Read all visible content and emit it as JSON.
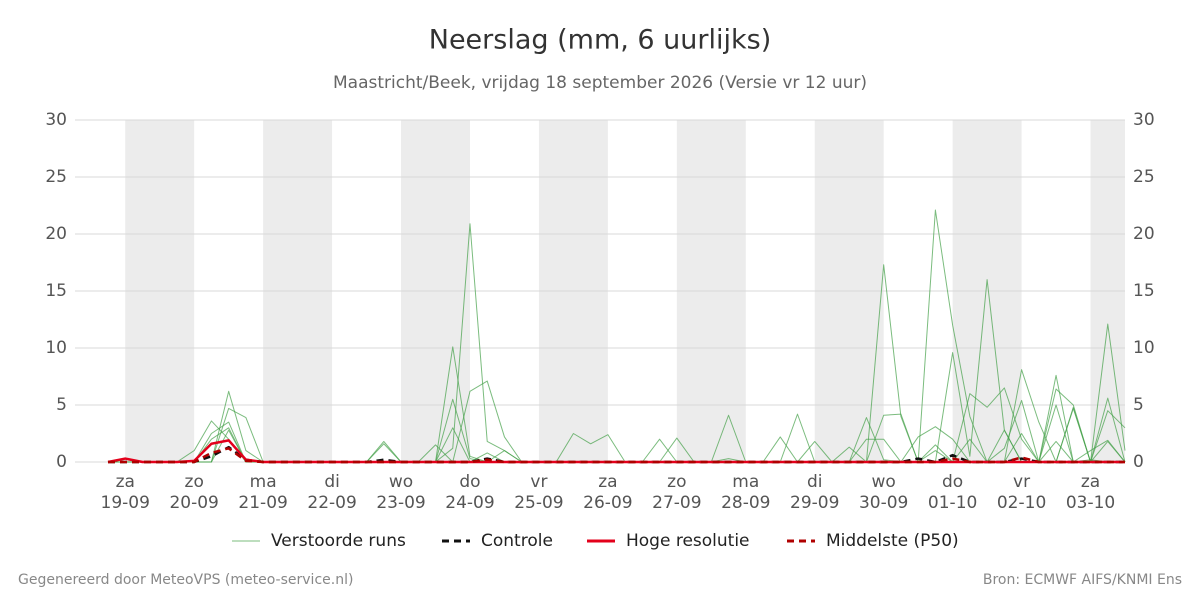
{
  "chart_data": {
    "type": "line",
    "title": "Neerslag (mm, 6 uurlijks)",
    "subtitle": "Maastricht/Beek, vrijdag 18 september 2026 (Versie vr 12 uur)",
    "footer_left": "Gegenereerd door MeteoVPS (meteo-service.nl)",
    "footer_right": "Bron: ECMWF AIFS/KNMI Ens",
    "categories": [
      null,
      "19-09",
      null,
      null,
      null,
      "20-09",
      null,
      null,
      null,
      "21-09",
      null,
      null,
      null,
      "22-09",
      null,
      null,
      null,
      "23-09",
      null,
      null,
      null,
      "24-09",
      null,
      null,
      null,
      "25-09",
      null,
      null,
      null,
      "26-09",
      null,
      null,
      null,
      "27-09",
      null,
      null,
      null,
      "28-09",
      null,
      null,
      null,
      "29-09",
      null,
      null,
      null,
      "30-09",
      null,
      null,
      null,
      "01-10",
      null,
      null,
      null,
      "02-10",
      null,
      null,
      null,
      "03-10",
      null,
      null
    ],
    "category_days": [
      null,
      "za",
      null,
      null,
      null,
      "zo",
      null,
      null,
      null,
      "ma",
      null,
      null,
      null,
      "di",
      null,
      null,
      null,
      "wo",
      null,
      null,
      null,
      "do",
      null,
      null,
      null,
      "vr",
      null,
      null,
      null,
      "za",
      null,
      null,
      null,
      "zo",
      null,
      null,
      null,
      "ma",
      null,
      null,
      null,
      "di",
      null,
      null,
      null,
      "wo",
      null,
      null,
      null,
      "do",
      null,
      null,
      null,
      "vr",
      null,
      null,
      null,
      "za",
      null,
      null
    ],
    "ylim": [
      0,
      30
    ],
    "yticks": [
      0,
      5,
      10,
      15,
      20,
      25,
      30
    ],
    "grid": true,
    "series": [
      {
        "name": "Verstoorde runs",
        "color": "#43a047",
        "values": [
          [
            0,
            0,
            0,
            0,
            0,
            0,
            2.0,
            3.0,
            0,
            0,
            0,
            0,
            0,
            0,
            0,
            0,
            0,
            0,
            0,
            0,
            1.2,
            20.9,
            1.8,
            1.0,
            0,
            0,
            0,
            0,
            0,
            0,
            0,
            0,
            0,
            0,
            0,
            0,
            0,
            0,
            0,
            0,
            0,
            0,
            0,
            0,
            0,
            17.3,
            4.0,
            0,
            1.5,
            0,
            2.0,
            0,
            2.8,
            0,
            0,
            5.0,
            0,
            0,
            1.8,
            0
          ],
          [
            0,
            0,
            0,
            0,
            0,
            0,
            0,
            6.2,
            1.0,
            0,
            0,
            0,
            0,
            0,
            0,
            0,
            0,
            0,
            0,
            0,
            10.1,
            0.5,
            0,
            0,
            0,
            0,
            0,
            0,
            0,
            0,
            0,
            0,
            0,
            0,
            0,
            0,
            4.1,
            0,
            0,
            0,
            0,
            0,
            0,
            0,
            3.9,
            0.2,
            0,
            0,
            22.1,
            12.0,
            4.0,
            0,
            0,
            2.5,
            0,
            0,
            4.8,
            0,
            12.1,
            1.0
          ],
          [
            0,
            0,
            0,
            0,
            0,
            0,
            0,
            4.7,
            3.9,
            0,
            0,
            0,
            0,
            0,
            0,
            0,
            0,
            0,
            0,
            0,
            0,
            6.2,
            7.1,
            2.2,
            0,
            0,
            0,
            2.5,
            1.6,
            2.4,
            0,
            0,
            0,
            0,
            0,
            0,
            0,
            0,
            0,
            0,
            0,
            0,
            0,
            0,
            0,
            0,
            0,
            0,
            0,
            9.6,
            0.5,
            16.0,
            2.8,
            0,
            0,
            7.6,
            0,
            0.2,
            0,
            0
          ],
          [
            0,
            0,
            0,
            0,
            0,
            1.0,
            3.6,
            2.0,
            0,
            0,
            0,
            0,
            0,
            0,
            0,
            0,
            1.8,
            0,
            0,
            0,
            5.5,
            0.3,
            0,
            0,
            0,
            0,
            0,
            0,
            0,
            0,
            0,
            0,
            2.0,
            0,
            0,
            0,
            0,
            0,
            0,
            0,
            4.2,
            0,
            0,
            0,
            0,
            4.1,
            4.2,
            0,
            0,
            0,
            6.0,
            4.8,
            6.5,
            2.0,
            0,
            6.4,
            5.0,
            0,
            4.5,
            3.0
          ],
          [
            0,
            0,
            0,
            0,
            0,
            0,
            2.5,
            3.5,
            0,
            0,
            0,
            0,
            0,
            0,
            0,
            0,
            1.6,
            0,
            0,
            0,
            3.0,
            0,
            0,
            1.0,
            0,
            0,
            0,
            0,
            0,
            0,
            0,
            0,
            0,
            0,
            0,
            0,
            0,
            0,
            0,
            2.2,
            0,
            1.8,
            0,
            0,
            2.0,
            2.0,
            0,
            2.2,
            3.1,
            2.0,
            0,
            0,
            0,
            8.1,
            3.5,
            0,
            4.7,
            0,
            5.6,
            0
          ],
          [
            0,
            0,
            0,
            0,
            0,
            0,
            0,
            2.8,
            0,
            0,
            0,
            0,
            0,
            0,
            0,
            0,
            0,
            0,
            0,
            1.5,
            0,
            0,
            0.8,
            0,
            0,
            0,
            0,
            0,
            0,
            0,
            0,
            0,
            0,
            2.1,
            0,
            0,
            0.3,
            0,
            0,
            0,
            0,
            0,
            0,
            1.3,
            0,
            0,
            0,
            0,
            1.0,
            0,
            0,
            0,
            1.2,
            5.4,
            0,
            1.8,
            0,
            1.0,
            1.9,
            0
          ]
        ]
      },
      {
        "name": "Controle",
        "color": "#111111",
        "dashed": true,
        "values": [
          0,
          0,
          0,
          0,
          0,
          0,
          0.5,
          1.3,
          0.2,
          0,
          0,
          0,
          0,
          0,
          0,
          0,
          0.2,
          0,
          0,
          0,
          0,
          0,
          0.3,
          0,
          0,
          0,
          0,
          0,
          0,
          0,
          0,
          0,
          0,
          0,
          0,
          0,
          0,
          0,
          0,
          0,
          0,
          0,
          0,
          0,
          0,
          0,
          0,
          0.3,
          0,
          0.6,
          0,
          0,
          0,
          0.3,
          0,
          0,
          0,
          0,
          0,
          0
        ]
      },
      {
        "name": "Hoge resolutie",
        "color": "#e3001b",
        "values": [
          0,
          0.3,
          0,
          0,
          0,
          0.1,
          1.6,
          1.9,
          0.2,
          0,
          0,
          0,
          0,
          0,
          0,
          0,
          0,
          0,
          0,
          0,
          0,
          0,
          0,
          0,
          0,
          0,
          0,
          0,
          0,
          0,
          0,
          0,
          0,
          0,
          0,
          0,
          0,
          0,
          0,
          0,
          0,
          0,
          0,
          0,
          0,
          0,
          0,
          0,
          0,
          0,
          0,
          0,
          0,
          0,
          0,
          0,
          0,
          0,
          0,
          0
        ]
      },
      {
        "name": "Middelste (P50)",
        "color": "#b00000",
        "dashed": true,
        "values": [
          0,
          0,
          0,
          0,
          0,
          0,
          0.8,
          1.2,
          0.1,
          0,
          0,
          0,
          0,
          0,
          0,
          0,
          0,
          0,
          0,
          0,
          0,
          0,
          0.2,
          0,
          0,
          0,
          0,
          0,
          0,
          0,
          0,
          0,
          0,
          0,
          0,
          0,
          0,
          0,
          0,
          0,
          0,
          0,
          0,
          0,
          0,
          0,
          0,
          0,
          0,
          0.3,
          0,
          0,
          0,
          0.4,
          0,
          0,
          0,
          0,
          0,
          0
        ]
      }
    ]
  }
}
